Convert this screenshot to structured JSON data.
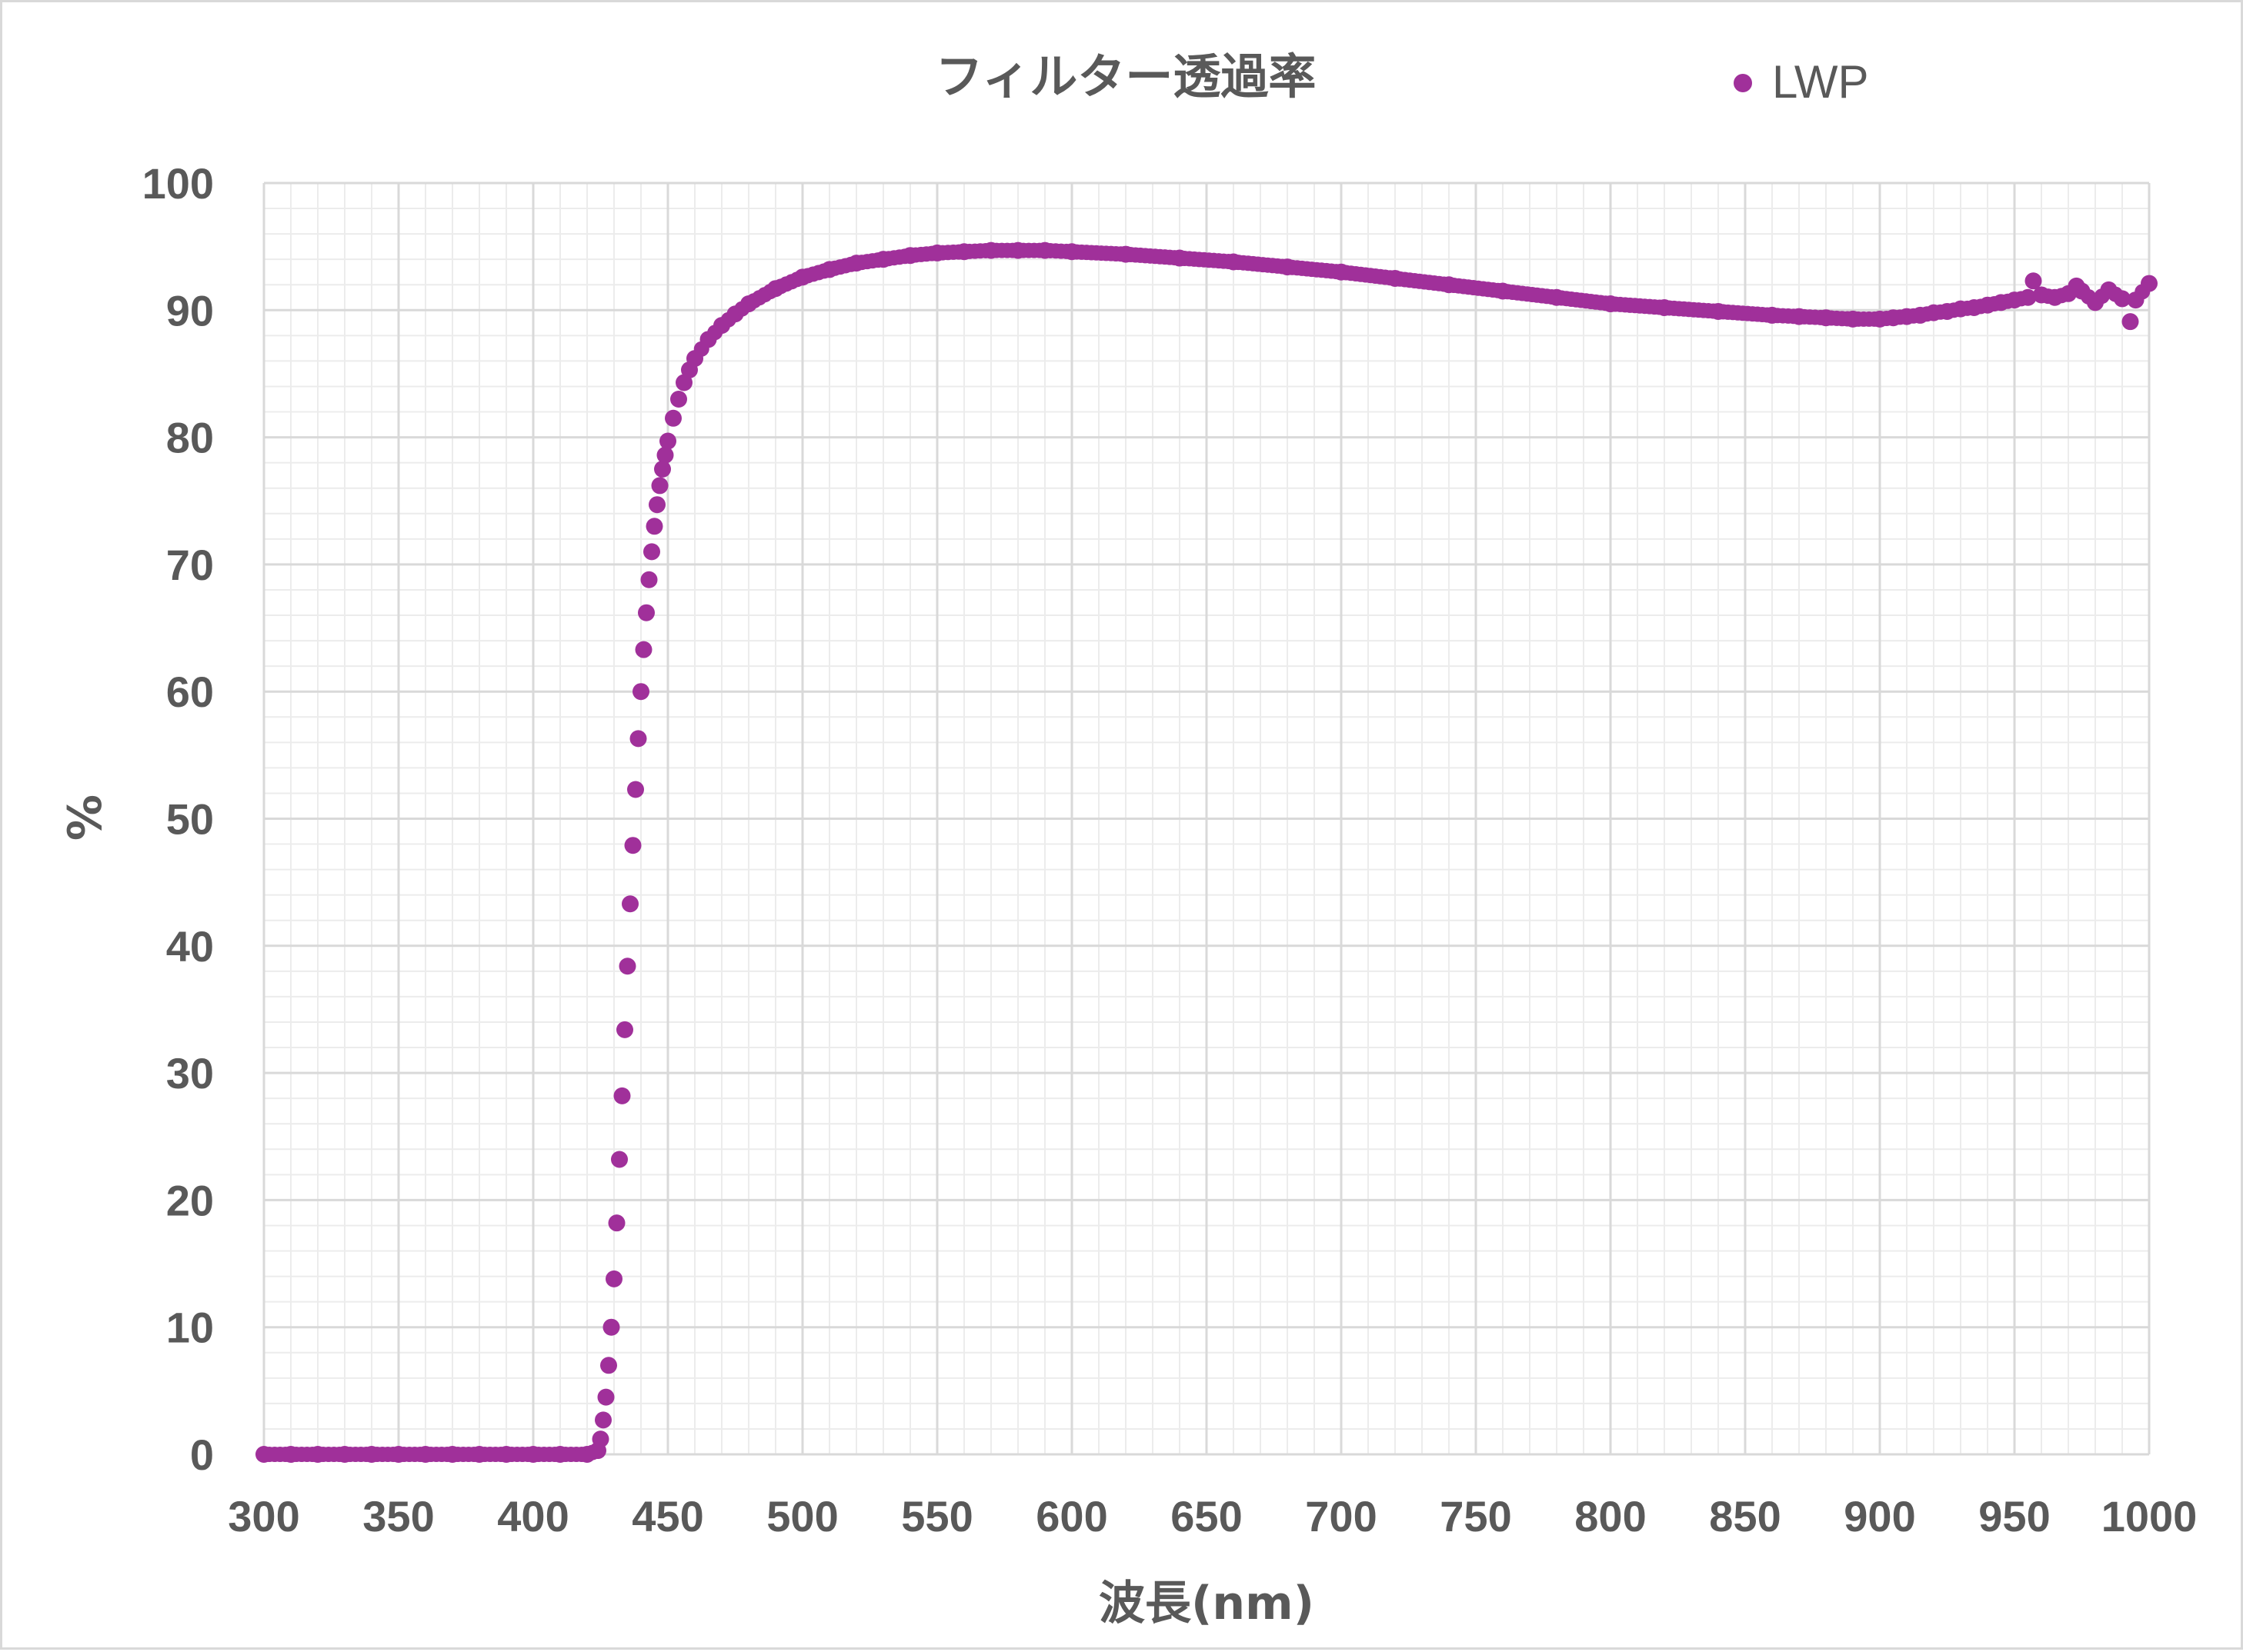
{
  "chart_data": {
    "type": "scatter",
    "title": "フィルター透過率",
    "xlabel": "波長(nm)",
    "ylabel": "%",
    "xlim": [
      300,
      1000
    ],
    "ylim": [
      0,
      100
    ],
    "x_ticks": [
      300,
      350,
      400,
      450,
      500,
      550,
      600,
      650,
      700,
      750,
      800,
      850,
      900,
      950,
      1000
    ],
    "y_ticks": [
      0,
      10,
      20,
      30,
      40,
      50,
      60,
      70,
      80,
      90,
      100
    ],
    "grid": true,
    "minor_grid": true,
    "legend_position": "top-right",
    "color": "#a0309a",
    "series": [
      {
        "name": "LWP",
        "x": [
          300,
          310,
          320,
          330,
          340,
          350,
          360,
          370,
          380,
          390,
          400,
          410,
          420,
          424,
          425,
          426,
          427,
          428,
          429,
          430,
          431,
          432,
          433,
          434,
          435,
          436,
          437,
          438,
          439,
          440,
          441,
          442,
          443,
          444,
          445,
          446,
          447,
          448,
          449,
          450,
          452,
          454,
          456,
          458,
          460,
          465,
          470,
          475,
          480,
          490,
          500,
          510,
          520,
          530,
          540,
          550,
          560,
          570,
          580,
          590,
          600,
          620,
          640,
          660,
          680,
          700,
          720,
          740,
          760,
          780,
          800,
          820,
          840,
          860,
          870,
          880,
          890,
          900,
          905,
          910,
          915,
          920,
          925,
          930,
          935,
          940,
          945,
          950,
          955,
          957,
          960,
          965,
          970,
          973,
          975,
          980,
          985,
          990,
          993,
          995,
          1000
        ],
        "y": [
          0,
          0,
          0,
          0,
          0,
          0,
          0,
          0,
          0,
          0,
          0,
          0,
          0,
          0.3,
          1.2,
          2.7,
          4.5,
          7.0,
          10.0,
          13.8,
          18.2,
          23.2,
          28.2,
          33.4,
          38.4,
          43.3,
          47.9,
          52.3,
          56.3,
          60.0,
          63.3,
          66.2,
          68.8,
          71.0,
          73.0,
          74.7,
          76.2,
          77.5,
          78.6,
          79.7,
          81.5,
          83.0,
          84.3,
          85.3,
          86.2,
          87.7,
          88.8,
          89.7,
          90.5,
          91.7,
          92.6,
          93.2,
          93.7,
          94.0,
          94.3,
          94.5,
          94.6,
          94.7,
          94.7,
          94.7,
          94.6,
          94.4,
          94.1,
          93.8,
          93.4,
          93.0,
          92.5,
          92.0,
          91.5,
          91.0,
          90.5,
          90.2,
          89.9,
          89.6,
          89.5,
          89.4,
          89.3,
          89.3,
          89.4,
          89.5,
          89.6,
          89.8,
          89.9,
          90.1,
          90.2,
          90.4,
          90.6,
          90.8,
          91.0,
          92.3,
          91.2,
          91.0,
          91.3,
          91.9,
          91.5,
          90.6,
          91.6,
          90.9,
          89.1,
          90.8,
          92.1
        ]
      }
    ]
  }
}
